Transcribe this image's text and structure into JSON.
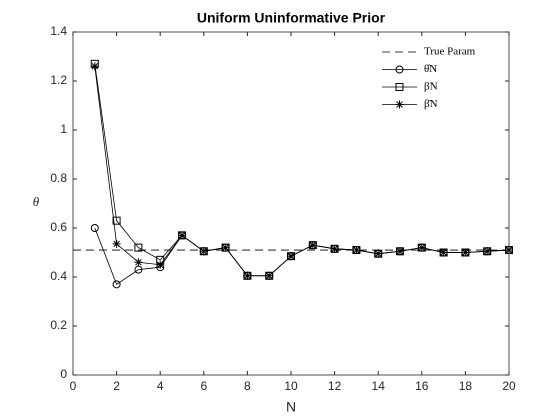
{
  "chart_data": {
    "type": "line",
    "title": "Uniform Uninformative Prior",
    "x_label": "N",
    "y_label": "θ",
    "x": [
      1,
      2,
      3,
      4,
      5,
      6,
      7,
      8,
      9,
      10,
      11,
      12,
      13,
      14,
      15,
      16,
      17,
      18,
      19,
      20
    ],
    "series": [
      {
        "name": "True Param",
        "color": "#000000",
        "dash": true,
        "marker": "none",
        "x": [
          0,
          20
        ],
        "values": [
          0.51,
          0.51
        ]
      },
      {
        "name": "θ̂N",
        "color": "#000000",
        "dash": false,
        "marker": "circle",
        "values": [
          0.6,
          0.37,
          0.43,
          0.44,
          0.57,
          0.505,
          0.52,
          0.405,
          0.405,
          0.485,
          0.53,
          0.515,
          0.51,
          0.495,
          0.505,
          0.52,
          0.5,
          0.5,
          0.505,
          0.51
        ]
      },
      {
        "name": "β̃N",
        "color": "#000000",
        "dash": false,
        "marker": "square",
        "values": [
          1.27,
          0.63,
          0.52,
          0.47,
          0.57,
          0.505,
          0.52,
          0.405,
          0.405,
          0.485,
          0.53,
          0.515,
          0.51,
          0.495,
          0.505,
          0.52,
          0.5,
          0.5,
          0.505,
          0.51
        ]
      },
      {
        "name": "β̄N",
        "color": "#000000",
        "dash": false,
        "marker": "star",
        "values": [
          1.26,
          0.535,
          0.46,
          0.45,
          0.57,
          0.505,
          0.52,
          0.405,
          0.405,
          0.485,
          0.53,
          0.515,
          0.51,
          0.495,
          0.505,
          0.52,
          0.5,
          0.5,
          0.505,
          0.51
        ]
      }
    ],
    "xlim": [
      0,
      20
    ],
    "xticks": [
      0,
      2,
      4,
      6,
      8,
      10,
      12,
      14,
      16,
      18,
      20
    ],
    "ylim": [
      0,
      1.4
    ],
    "yticks": [
      0,
      0.2,
      0.4,
      0.6,
      0.8,
      1,
      1.2,
      1.4
    ],
    "grid": false,
    "legend": "northeast"
  }
}
